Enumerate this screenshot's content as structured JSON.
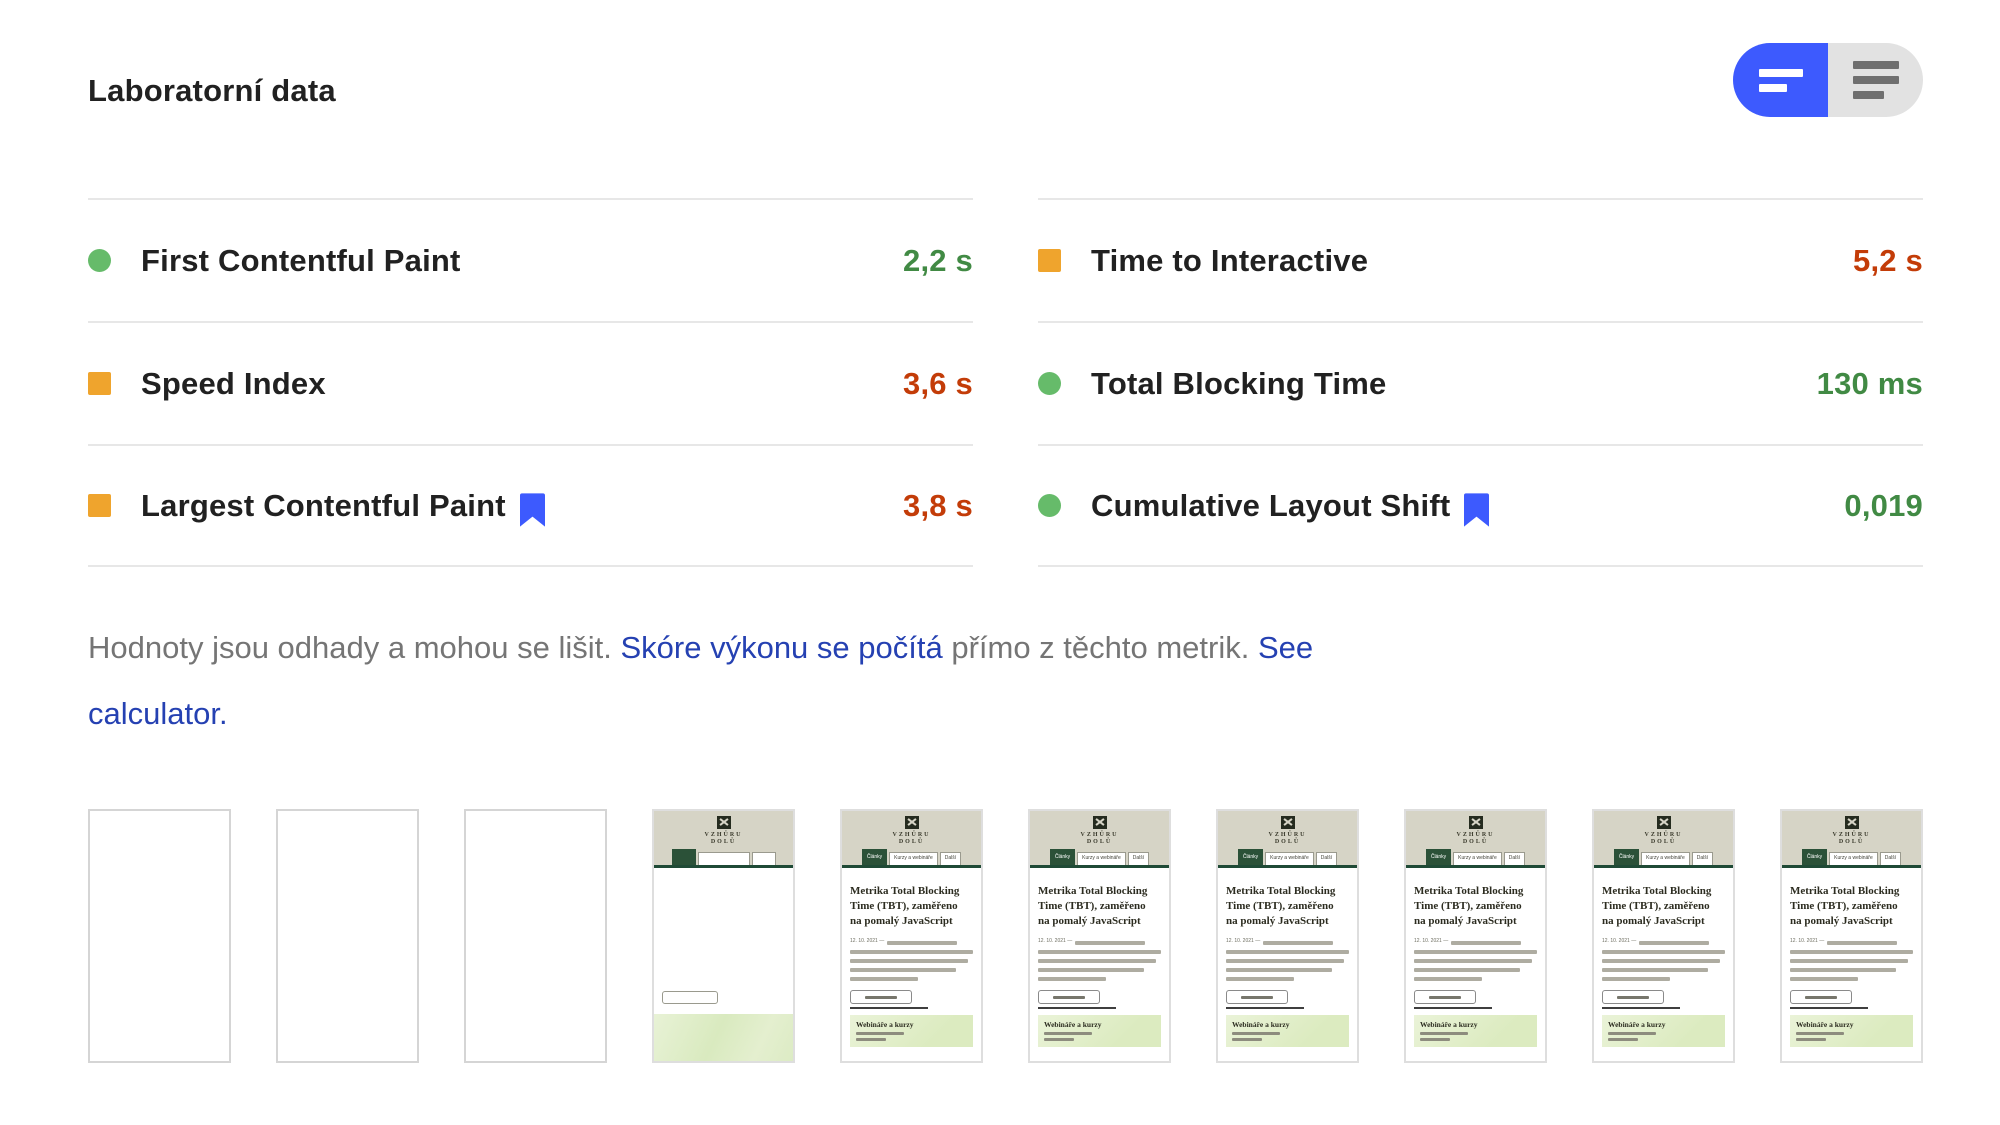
{
  "header": {
    "title": "Laboratorní data"
  },
  "toggle": {
    "compact_label": "compact metrics view",
    "expanded_label": "expanded metrics view",
    "active_color": "#3d5afe",
    "inactive_color": "#e2e2e2"
  },
  "colors": {
    "pass_icon": "#66bb6a",
    "pass_text": "#418a44",
    "average_icon": "#efa42d",
    "average_text": "#c33c08",
    "bookmark_blue": "#3d5afe",
    "link_blue": "#2541b2"
  },
  "metrics": [
    {
      "label": "First Contentful Paint",
      "value": "2,2 s",
      "status": "pass",
      "icon": "circle",
      "bookmarked": false
    },
    {
      "label": "Time to Interactive",
      "value": "5,2 s",
      "status": "average",
      "icon": "square",
      "bookmarked": false
    },
    {
      "label": "Speed Index",
      "value": "3,6 s",
      "status": "average",
      "icon": "square",
      "bookmarked": false
    },
    {
      "label": "Total Blocking Time",
      "value": "130 ms",
      "status": "pass",
      "icon": "circle",
      "bookmarked": false
    },
    {
      "label": "Largest Contentful Paint",
      "value": "3,8 s",
      "status": "average",
      "icon": "square",
      "bookmarked": true
    },
    {
      "label": "Cumulative Layout Shift",
      "value": "0,019",
      "status": "pass",
      "icon": "circle",
      "bookmarked": true
    }
  ],
  "disclaimer": {
    "segments": [
      {
        "type": "text",
        "text": "Hodnoty jsou odhady a mohou se lišit. "
      },
      {
        "type": "link",
        "text": "Skóre výkonu se počítá"
      },
      {
        "type": "text",
        "text": " přímo z těchto metrik. "
      },
      {
        "type": "link",
        "text": "See"
      },
      {
        "type": "break"
      },
      {
        "type": "link",
        "text": "calculator."
      }
    ]
  },
  "filmstrip": {
    "frames": [
      "blank",
      "blank",
      "blank",
      "partial",
      "full",
      "full",
      "full",
      "full",
      "full",
      "full"
    ],
    "page": {
      "site_name_top": "VZHŮRU",
      "site_name_bottom": "DOLŮ",
      "tabs": [
        "Články",
        "Kurzy a webináře",
        "Další"
      ],
      "heading": "Metrika Total Blocking Time (TBT), zaměřeno na pomalý JavaScript",
      "date": "12. 10. 2021 —",
      "promo_title": "Webináře a kurzy"
    }
  }
}
